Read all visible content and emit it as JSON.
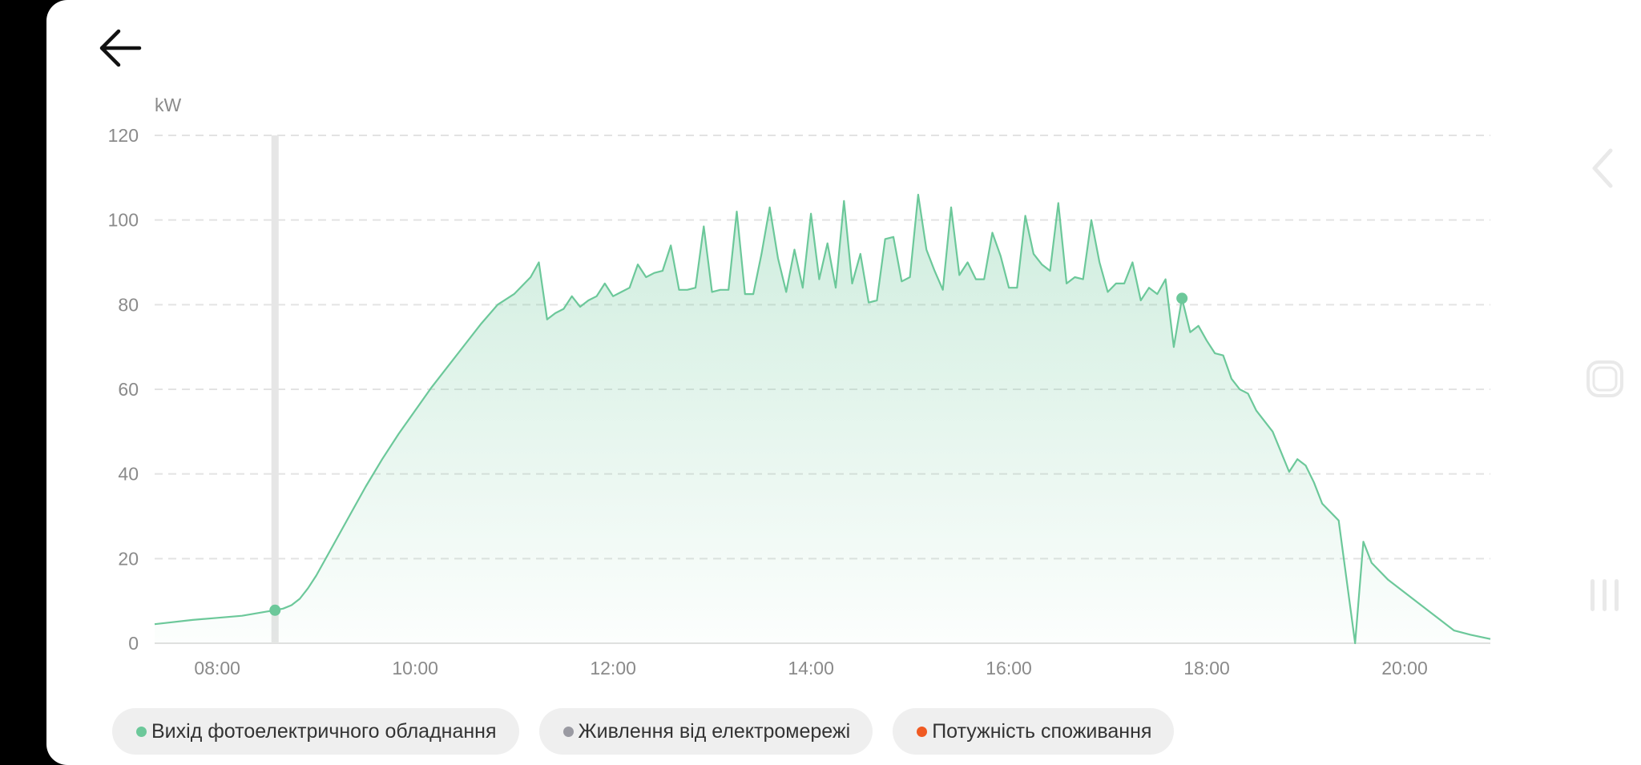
{
  "colors": {
    "pv": "#6cc89a",
    "grid": "#9a9aa2",
    "consumption": "#f05a22",
    "axis_text": "#8a8a8a"
  },
  "icons": {
    "back": "arrow-left-icon",
    "nav_back": "chevron-left-icon",
    "nav_home": "rounded-square-icon",
    "nav_recents": "three-bars-icon"
  },
  "legend": {
    "pv_label": "Вихід фотоелектричного обладнання",
    "grid_label": "Живлення від електромережі",
    "consumption_label": "Потужність споживання"
  },
  "chart_data": {
    "type": "area",
    "ylabel": "kW",
    "ylim": [
      0,
      120
    ],
    "yticks": [
      0,
      20,
      40,
      60,
      80,
      100,
      120
    ],
    "xlim": [
      "07:22",
      "20:52"
    ],
    "xticks": [
      "08:00",
      "10:00",
      "12:00",
      "14:00",
      "16:00",
      "18:00",
      "20:00"
    ],
    "grid": true,
    "highlight_time": "08:35",
    "series": [
      {
        "name": "Вихід фотоелектричного обладнання",
        "x": [
          "07:22",
          "07:45",
          "08:00",
          "08:15",
          "08:30",
          "08:35",
          "08:40",
          "08:45",
          "08:50",
          "08:55",
          "09:00",
          "09:10",
          "09:20",
          "09:30",
          "09:40",
          "09:50",
          "10:00",
          "10:10",
          "10:20",
          "10:30",
          "10:40",
          "10:50",
          "11:00",
          "11:10",
          "11:15",
          "11:20",
          "11:25",
          "11:30",
          "11:35",
          "11:40",
          "11:45",
          "11:50",
          "11:55",
          "12:00",
          "12:05",
          "12:10",
          "12:15",
          "12:20",
          "12:25",
          "12:30",
          "12:35",
          "12:40",
          "12:45",
          "12:50",
          "12:55",
          "13:00",
          "13:05",
          "13:10",
          "13:15",
          "13:20",
          "13:25",
          "13:30",
          "13:35",
          "13:40",
          "13:45",
          "13:50",
          "13:55",
          "14:00",
          "14:05",
          "14:10",
          "14:15",
          "14:20",
          "14:25",
          "14:30",
          "14:35",
          "14:40",
          "14:45",
          "14:50",
          "14:55",
          "15:00",
          "15:05",
          "15:10",
          "15:15",
          "15:20",
          "15:25",
          "15:30",
          "15:35",
          "15:40",
          "15:45",
          "15:50",
          "15:55",
          "16:00",
          "16:05",
          "16:10",
          "16:15",
          "16:20",
          "16:25",
          "16:30",
          "16:35",
          "16:40",
          "16:45",
          "16:50",
          "16:55",
          "17:00",
          "17:05",
          "17:10",
          "17:15",
          "17:20",
          "17:25",
          "17:30",
          "17:35",
          "17:40",
          "17:45",
          "17:50",
          "17:55",
          "18:00",
          "18:05",
          "18:10",
          "18:15",
          "18:20",
          "18:25",
          "18:30",
          "18:40",
          "18:50",
          "18:55",
          "19:00",
          "19:05",
          "19:10",
          "19:20",
          "19:30",
          "19:35",
          "19:40",
          "19:50",
          "20:00",
          "20:10",
          "20:20",
          "20:30",
          "20:40",
          "20:52"
        ],
        "y": [
          4.5,
          5.5,
          6,
          6.5,
          7.5,
          7.8,
          8.2,
          9,
          10.5,
          13,
          16,
          23,
          30,
          37,
          43.5,
          49.5,
          55,
          60.5,
          65.5,
          70.5,
          75.5,
          80,
          82.5,
          86.5,
          90,
          76.5,
          78,
          79,
          82,
          79.5,
          81,
          82,
          85,
          82,
          83,
          84,
          89.5,
          86.5,
          87.5,
          88,
          94,
          83.5,
          83.5,
          84,
          98.5,
          83,
          83.5,
          83.5,
          102,
          82.5,
          82.5,
          92,
          103,
          91,
          83,
          93,
          84,
          101.5,
          86,
          94.5,
          84,
          104.5,
          85,
          92,
          80.5,
          81,
          95.5,
          96,
          85.5,
          86.5,
          106,
          93,
          88,
          83.5,
          103,
          87,
          90,
          86,
          86,
          97,
          91.5,
          84,
          84,
          101,
          92,
          89.5,
          88,
          104,
          85,
          86.5,
          86,
          100,
          90,
          83,
          85,
          85,
          90,
          81,
          84,
          82.5,
          86,
          70,
          81.5,
          73.5,
          75,
          71.5,
          68.5,
          68,
          62.5,
          60,
          59,
          55,
          50,
          40.5,
          43.5,
          42,
          38,
          33,
          29,
          0,
          24,
          19,
          15,
          12,
          9,
          6,
          3,
          2,
          1
        ]
      }
    ],
    "markers": [
      {
        "x": "08:35",
        "y": 7.8
      },
      {
        "x": "17:45",
        "y": 81.5
      }
    ]
  }
}
